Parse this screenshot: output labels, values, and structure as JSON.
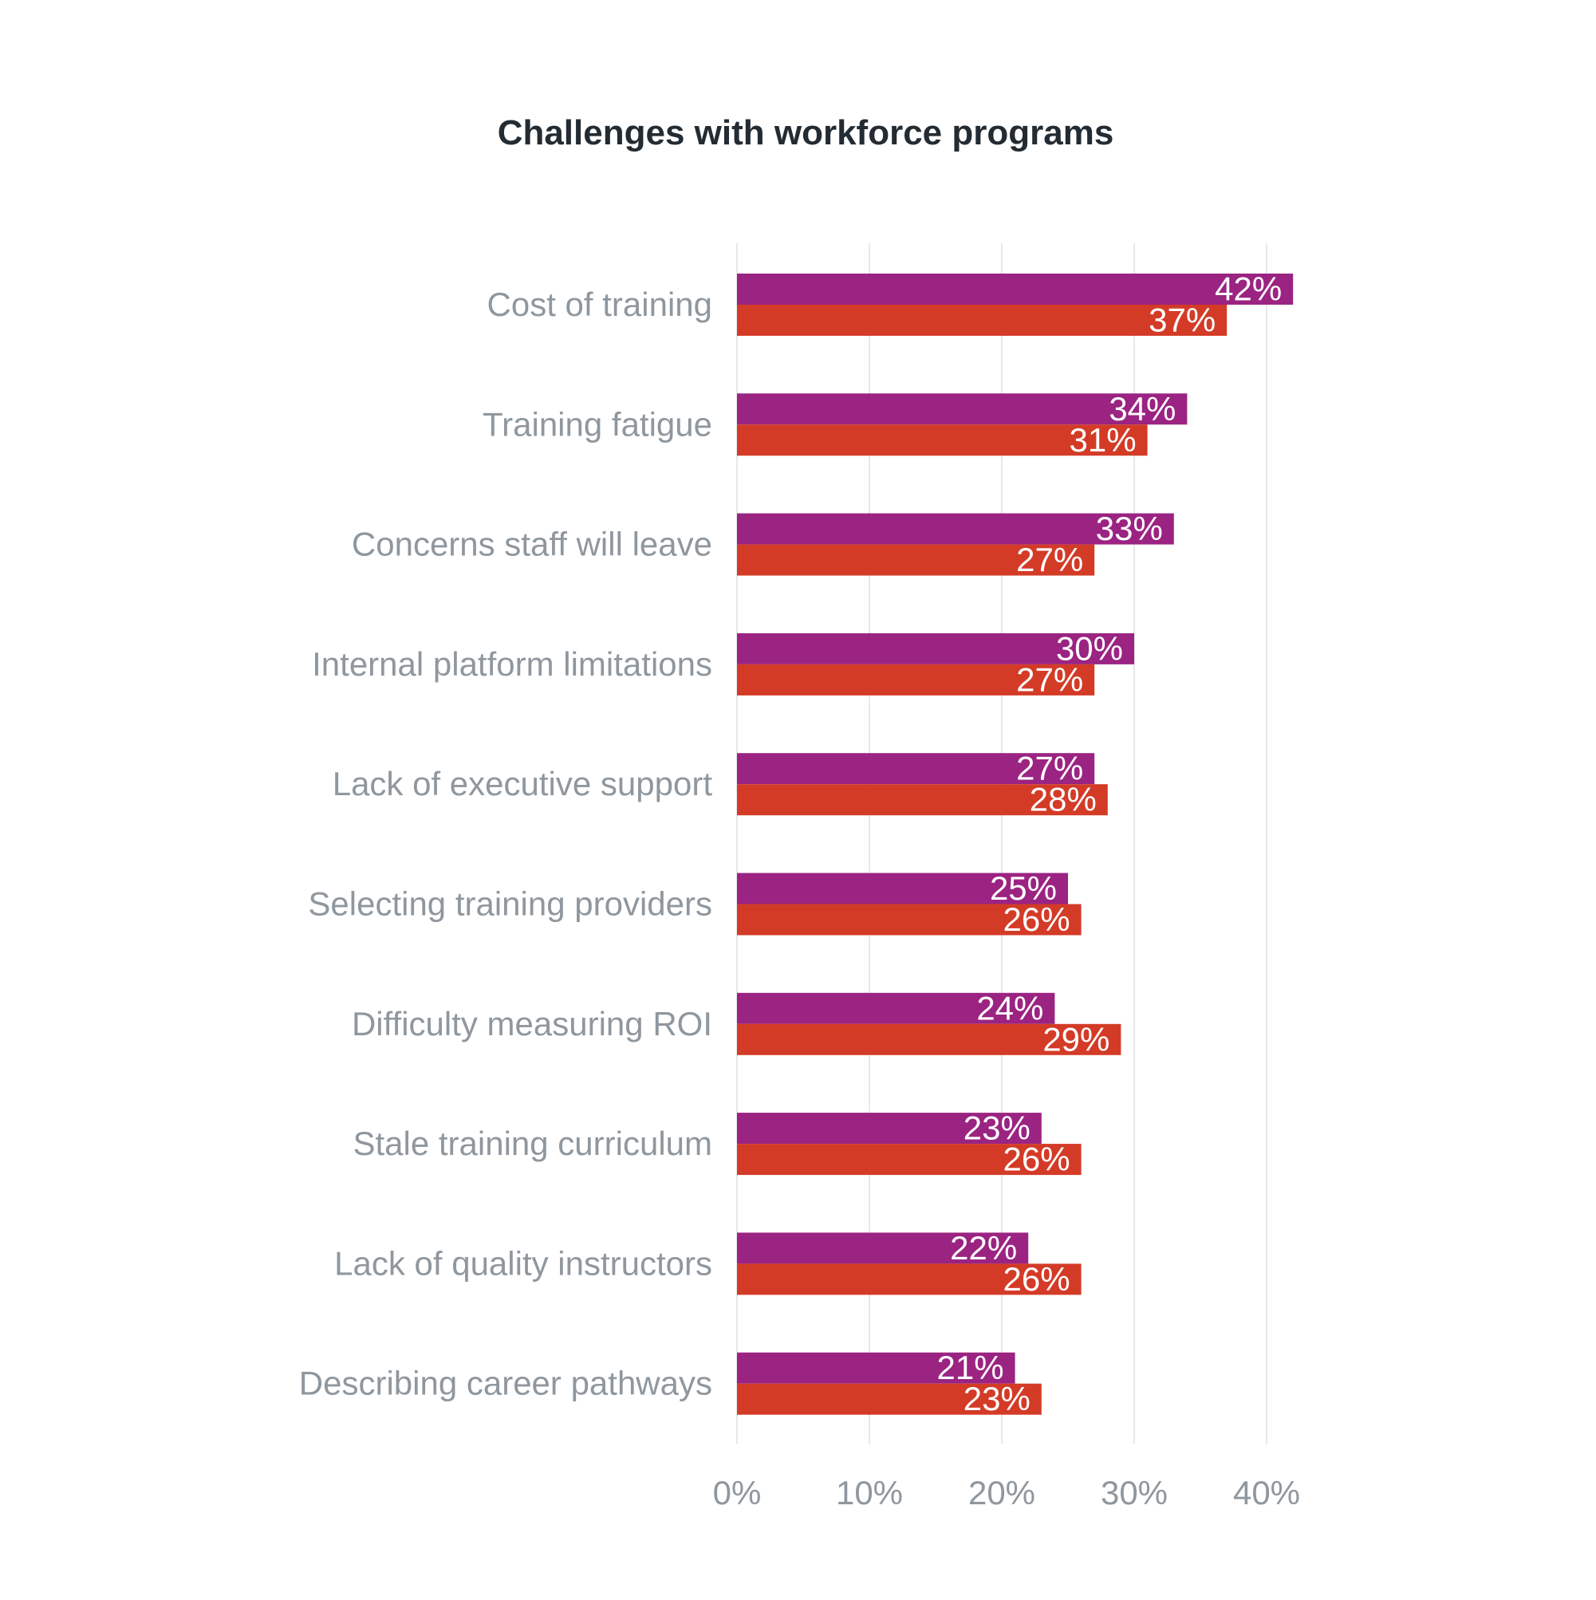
{
  "chart_data": {
    "type": "bar",
    "orientation": "horizontal",
    "title": "Challenges with workforce programs",
    "xlabel": "",
    "ylabel": "",
    "xlim": [
      0,
      40
    ],
    "ticks": [
      "0%",
      "10%",
      "20%",
      "30%",
      "40%"
    ],
    "tick_values": [
      0,
      10,
      20,
      30,
      40
    ],
    "grid": true,
    "legend": "none",
    "categories": [
      "Cost of training",
      "Training fatigue",
      "Concerns staff will leave",
      "Internal platform limitations",
      "Lack of executive support",
      "Selecting training providers",
      "Difficulty measuring ROI",
      "Stale training curriculum",
      "Lack of quality instructors",
      "Describing career pathways"
    ],
    "series": [
      {
        "color": "#9b2382",
        "values": [
          42,
          34,
          33,
          30,
          27,
          25,
          24,
          23,
          22,
          21
        ],
        "labels": [
          "42%",
          "34%",
          "33%",
          "30%",
          "27%",
          "25%",
          "24%",
          "23%",
          "22%",
          "21%"
        ]
      },
      {
        "color": "#d33b27",
        "values": [
          37,
          31,
          27,
          27,
          28,
          26,
          29,
          26,
          26,
          23
        ],
        "labels": [
          "37%",
          "31%",
          "27%",
          "27%",
          "28%",
          "26%",
          "29%",
          "26%",
          "26%",
          "23%"
        ]
      }
    ]
  }
}
